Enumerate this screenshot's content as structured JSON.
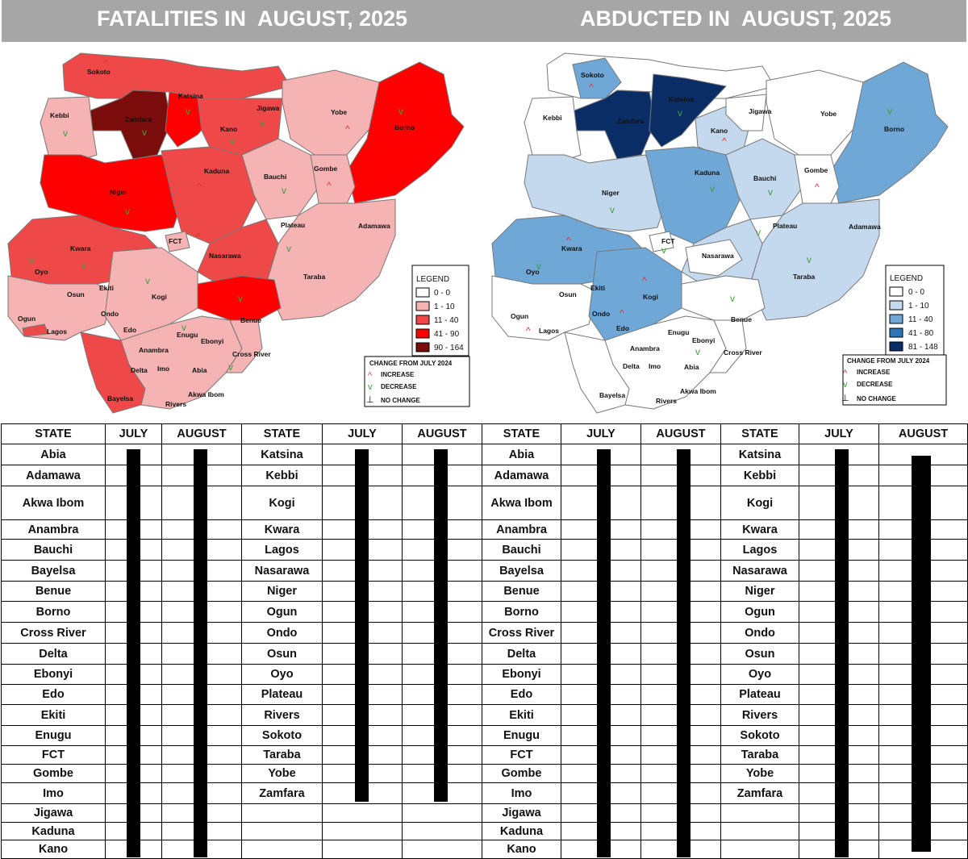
{
  "header": {
    "left_title": "FATALITIES IN  AUGUST, 2025",
    "right_title": "ABDUCTED IN  AUGUST, 2025"
  },
  "fatalities_map": {
    "legend_title": "LEGEND",
    "legend": [
      {
        "label": "0 - 0",
        "color": "#ffffff"
      },
      {
        "label": "1 - 10",
        "color": "#f6b3b3"
      },
      {
        "label": "11 - 40",
        "color": "#ef4848"
      },
      {
        "label": "41 - 90",
        "color": "#ff0000"
      },
      {
        "label": "90 - 164",
        "color": "#7a0c0c"
      }
    ],
    "change_title": "CHANGE FROM JULY 2024",
    "change_items": [
      {
        "label": "INCREASE",
        "icon": "increase-arrow-icon",
        "color": "#e03030"
      },
      {
        "label": "DECREASE",
        "icon": "decrease-arrow-icon",
        "color": "#3aa23a"
      },
      {
        "label": "NO CHANGE",
        "icon": "no-change-icon",
        "color": "#000000"
      }
    ],
    "states": [
      "Sokoto",
      "Kebbi",
      "Zamfara",
      "Katsina",
      "Jigawa",
      "Kano",
      "Yobe",
      "Borno",
      "Kaduna",
      "Bauchi",
      "Gombe",
      "Niger",
      "Plateau",
      "Adamawa",
      "FCT",
      "Kwara",
      "Nasarawa",
      "Taraba",
      "Oyo",
      "Osun",
      "Ekiti",
      "Kogi",
      "Ogun",
      "Ondo",
      "Lagos",
      "Edo",
      "Enugu",
      "Benue",
      "Ebonyi",
      "Anambra",
      "Cross River",
      "Delta",
      "Imo",
      "Abia",
      "Akwa Ibom",
      "Bayelsa",
      "Rivers"
    ]
  },
  "abducted_map": {
    "legend_title": "LEGEND",
    "legend": [
      {
        "label": "0 - 0",
        "color": "#ffffff"
      },
      {
        "label": "1 - 10",
        "color": "#c5d9ee"
      },
      {
        "label": "11 - 40",
        "color": "#6fa8d6"
      },
      {
        "label": "41 - 80",
        "color": "#2e75b6"
      },
      {
        "label": "81 - 148",
        "color": "#0b2d66"
      }
    ],
    "change_title": "CHANGE FROM JULY 2024",
    "change_items": [
      {
        "label": "INCREASE",
        "icon": "increase-arrow-icon",
        "color": "#e03030"
      },
      {
        "label": "DECREASE",
        "icon": "decrease-arrow-icon",
        "color": "#3aa23a"
      },
      {
        "label": "NO CHANGE",
        "icon": "no-change-icon",
        "color": "#000000"
      }
    ],
    "states": [
      "Sokoto",
      "Kebbi",
      "Zamfara",
      "Katsina",
      "Jigawa",
      "Kano",
      "Yobe",
      "Borno",
      "Kaduna",
      "Bauchi",
      "Gombe",
      "Niger",
      "Plateau",
      "Adamawa",
      "FCT",
      "Kwara",
      "Nasarawa",
      "Taraba",
      "Oyo",
      "Osun",
      "Ekiti",
      "Kogi",
      "Ogun",
      "Ondo",
      "Lagos",
      "Edo",
      "Enugu",
      "Benue",
      "Ebonyi",
      "Anambra",
      "Cross River",
      "Delta",
      "Imo",
      "Abia",
      "Akwa Ibom",
      "Bayelsa",
      "Rivers"
    ]
  },
  "table": {
    "headers": [
      "STATE",
      "JULY",
      "AUGUST",
      "STATE",
      "JULY",
      "AUGUST",
      "STATE",
      "JULY",
      "AUGUST",
      "STATE",
      "JULY",
      "AUGUST"
    ],
    "rows": [
      [
        "Abia",
        "",
        "",
        "Katsina",
        "",
        "",
        "Abia",
        "",
        "",
        "Katsina",
        "",
        ""
      ],
      [
        "Adamawa",
        "",
        "",
        "Kebbi",
        "",
        "",
        "Adamawa",
        "",
        "",
        "Kebbi",
        "",
        ""
      ],
      [
        "Akwa Ibom",
        "",
        "",
        "Kogi",
        "",
        "",
        "Akwa Ibom",
        "",
        "",
        "Kogi",
        "",
        ""
      ],
      [
        "Anambra",
        "",
        "",
        "Kwara",
        "",
        "",
        "Anambra",
        "",
        "",
        "Kwara",
        "",
        ""
      ],
      [
        "Bauchi",
        "",
        "",
        "Lagos",
        "",
        "",
        "Bauchi",
        "",
        "",
        "Lagos",
        "",
        ""
      ],
      [
        "Bayelsa",
        "",
        "",
        "Nasarawa",
        "",
        "",
        "Bayelsa",
        "",
        "",
        "Nasarawa",
        "",
        ""
      ],
      [
        "Benue",
        "",
        "",
        "Niger",
        "",
        "",
        "Benue",
        "",
        "",
        "Niger",
        "",
        ""
      ],
      [
        "Borno",
        "",
        "",
        "Ogun",
        "",
        "",
        "Borno",
        "",
        "",
        "Ogun",
        "",
        ""
      ],
      [
        "Cross River",
        "",
        "",
        "Ondo",
        "",
        "",
        "Cross River",
        "",
        "",
        "Ondo",
        "",
        ""
      ],
      [
        "Delta",
        "",
        "",
        "Osun",
        "",
        "",
        "Delta",
        "",
        "",
        "Osun",
        "",
        ""
      ],
      [
        "Ebonyi",
        "",
        "",
        "Oyo",
        "",
        "",
        "Ebonyi",
        "",
        "",
        "Oyo",
        "",
        ""
      ],
      [
        "Edo",
        "",
        "",
        "Plateau",
        "",
        "",
        "Edo",
        "",
        "",
        "Plateau",
        "",
        ""
      ],
      [
        "Ekiti",
        "",
        "",
        "Rivers",
        "",
        "",
        "Ekiti",
        "",
        "",
        "Rivers",
        "",
        ""
      ],
      [
        "Enugu",
        "",
        "",
        "Sokoto",
        "",
        "",
        "Enugu",
        "",
        "",
        "Sokoto",
        "",
        ""
      ],
      [
        "FCT",
        "",
        "",
        "Taraba",
        "",
        "",
        "FCT",
        "",
        "",
        "Taraba",
        "",
        ""
      ],
      [
        "Gombe",
        "",
        "",
        "Yobe",
        "",
        "",
        "Gombe",
        "",
        "",
        "Yobe",
        "",
        ""
      ],
      [
        "Imo",
        "",
        "",
        "Zamfara",
        "",
        "",
        "Imo",
        "",
        "",
        "Zamfara",
        "",
        ""
      ],
      [
        "Jigawa",
        "",
        "",
        "",
        "",
        "",
        "Jigawa",
        "",
        "",
        "",
        "",
        ""
      ],
      [
        "Kaduna",
        "",
        "",
        "",
        "",
        "",
        "Kaduna",
        "",
        "",
        "",
        "",
        ""
      ],
      [
        "Kano",
        "",
        "",
        "",
        "",
        "",
        "Kano",
        "",
        "",
        "",
        "",
        ""
      ]
    ]
  }
}
